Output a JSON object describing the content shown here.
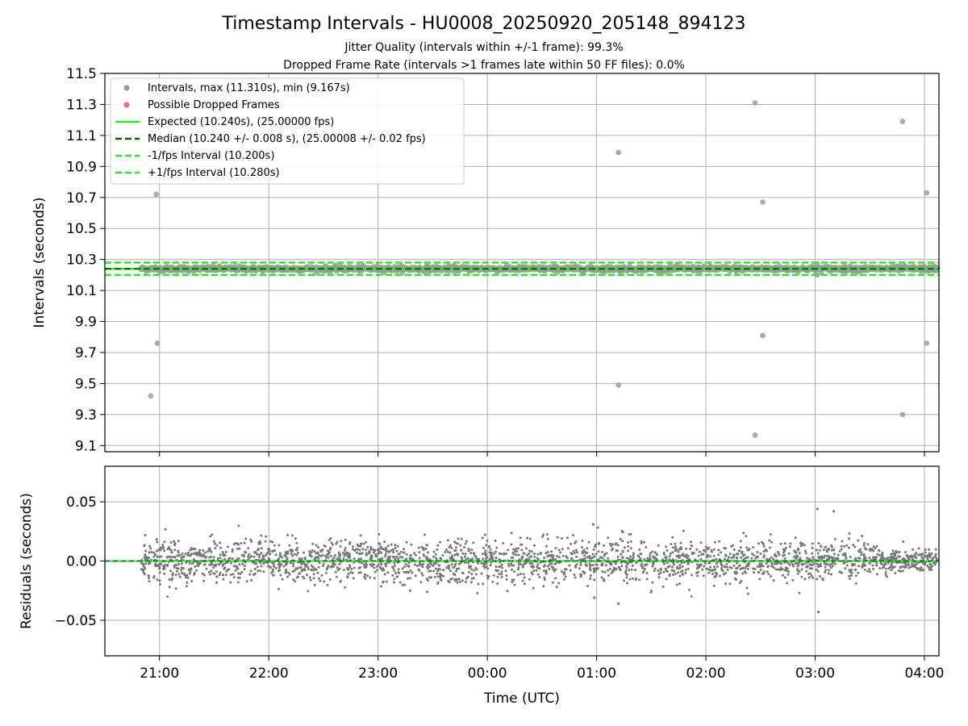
{
  "figure": {
    "title": "Timestamp Intervals - HU0008_20250920_205148_894123",
    "subtitle_1": "Jitter Quality (intervals within +/-1 frame): 99.3%",
    "subtitle_2": "Dropped Frame Rate (intervals >1 frames late within 50 FF files): 0.0%"
  },
  "colors": {
    "intervals": "#999999",
    "dropped": "#ff6666",
    "expected": "#22ee22",
    "median": "#006400",
    "fps_band": "#22ee22",
    "residuals": "#777777",
    "grid": "#b0b0b0"
  },
  "chart_data": [
    {
      "type": "scatter",
      "name": "intervals",
      "ylabel": "Intervals (seconds)",
      "xlim_hours": [
        20.5,
        28.133
      ],
      "ylim": [
        9.06,
        11.5
      ],
      "yticks": [
        "9.1",
        "9.3",
        "9.5",
        "9.7",
        "9.9",
        "10.1",
        "10.3",
        "10.5",
        "10.7",
        "10.9",
        "11.1",
        "11.3",
        "11.5"
      ],
      "ytick_values": [
        9.1,
        9.3,
        9.5,
        9.7,
        9.9,
        10.1,
        10.3,
        10.5,
        10.7,
        10.9,
        11.1,
        11.3,
        11.5
      ],
      "xtick_values": [
        21,
        22,
        23,
        24,
        25,
        26,
        27,
        28
      ],
      "grid": true,
      "legend_position": "top-left",
      "legend": [
        "Intervals, max (11.310s), min (9.167s)",
        "Possible Dropped Frames",
        "Expected (10.240s), (25.00000 fps)",
        "Median (10.240 +/- 0.008 s), (25.00008 +/- 0.02 fps)",
        "-1/fps Interval (10.200s)",
        "+1/fps Interval (10.280s)"
      ],
      "expected": 10.24,
      "median": 10.24,
      "minus_fps": 10.2,
      "plus_fps": 10.28,
      "main_band": {
        "x_start": 20.83,
        "x_end": 28.12,
        "center": 10.24,
        "spread": 0.008
      },
      "outliers": [
        {
          "x": 20.92,
          "y": 9.42
        },
        {
          "x": 20.97,
          "y": 10.72
        },
        {
          "x": 20.98,
          "y": 9.76
        },
        {
          "x": 25.2,
          "y": 10.99
        },
        {
          "x": 25.2,
          "y": 9.49
        },
        {
          "x": 26.45,
          "y": 11.31
        },
        {
          "x": 26.45,
          "y": 9.167
        },
        {
          "x": 26.52,
          "y": 10.67
        },
        {
          "x": 26.52,
          "y": 9.81
        },
        {
          "x": 27.02,
          "y": 10.27
        },
        {
          "x": 27.02,
          "y": 10.2
        },
        {
          "x": 27.8,
          "y": 11.19
        },
        {
          "x": 27.8,
          "y": 9.3
        },
        {
          "x": 28.02,
          "y": 10.73
        },
        {
          "x": 28.02,
          "y": 9.76
        }
      ]
    },
    {
      "type": "scatter",
      "name": "residuals",
      "xlabel": "Time (UTC)",
      "ylabel": "Residuals (seconds)",
      "xlim_hours": [
        20.5,
        28.133
      ],
      "ylim": [
        -0.08,
        0.08
      ],
      "yticks": [
        "0.05",
        "0.00",
        "−0.05"
      ],
      "ytick_values": [
        0.05,
        0.0,
        -0.05
      ],
      "xticks": [
        "21:00",
        "22:00",
        "23:00",
        "00:00",
        "01:00",
        "02:00",
        "03:00",
        "04:00"
      ],
      "xtick_values": [
        21,
        22,
        23,
        24,
        25,
        26,
        27,
        28
      ],
      "grid": true,
      "zero_line": 0.0,
      "point_count": 2500,
      "std": 0.009,
      "extreme_points": [
        {
          "x": 27.02,
          "y": 0.044
        },
        {
          "x": 27.17,
          "y": 0.042
        },
        {
          "x": 27.03,
          "y": -0.043
        },
        {
          "x": 24.97,
          "y": 0.031
        },
        {
          "x": 24.98,
          "y": -0.031
        },
        {
          "x": 25.2,
          "y": -0.036
        },
        {
          "x": 23.45,
          "y": -0.026
        }
      ]
    }
  ]
}
